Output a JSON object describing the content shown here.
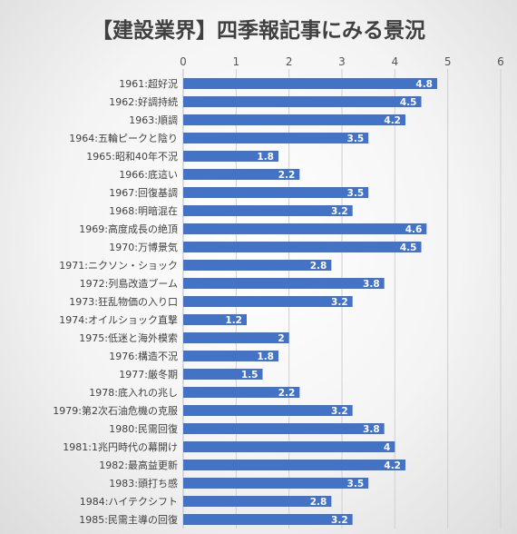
{
  "chart_data": {
    "type": "bar",
    "orientation": "horizontal",
    "title": "【建設業界】四季報記事にみる景況",
    "categories": [
      "1961:超好況",
      "1962:好調持続",
      "1963:順調",
      "1964:五輪ピークと陰り",
      "1965:昭和40年不況",
      "1966:底這い",
      "1967:回復基調",
      "1968:明暗混在",
      "1969:高度成長の絶頂",
      "1970:万博景気",
      "1971:ニクソン・ショック",
      "1972:列島改造ブーム",
      "1973:狂乱物価の入り口",
      "1974:オイルショック直撃",
      "1975:低迷と海外模索",
      "1976:構造不況",
      "1977:厳冬期",
      "1978:底入れの兆し",
      "1979:第2次石油危機の克服",
      "1980:民需回復",
      "1981:1兆円時代の幕開け",
      "1982:最高益更新",
      "1983:頭打ち感",
      "1984:ハイテクシフト",
      "1985:民需主導の回復"
    ],
    "values": [
      4.8,
      4.5,
      4.2,
      3.5,
      1.8,
      2.2,
      3.5,
      3.2,
      4.6,
      4.5,
      2.8,
      3.8,
      3.2,
      1.2,
      2,
      1.8,
      1.5,
      2.2,
      3.2,
      3.8,
      4,
      4.2,
      3.5,
      2.8,
      3.2
    ],
    "xlim": [
      0,
      6
    ],
    "xticks": [
      "0",
      "1",
      "2",
      "3",
      "4",
      "5",
      "6"
    ],
    "axis_position": "top",
    "grid": true,
    "bar_color": "#4472c4",
    "label_color": "#ffffff"
  }
}
